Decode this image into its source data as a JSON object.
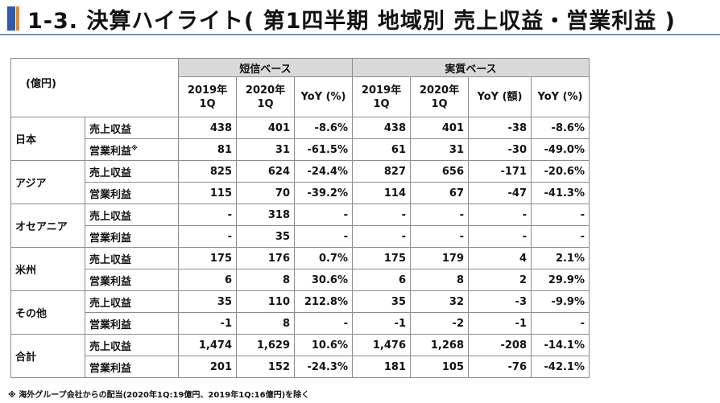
{
  "title": "1-3. 決算ハイライト( 第1四半期 地域別 売上収益・営業利益 )",
  "unit_label": "(億円)",
  "groups": {
    "reported": "短信ベース",
    "real": "実質ベース"
  },
  "columns": {
    "y2019_line1": "2019年",
    "y2019_line2": "1Q",
    "y2020_line1": "2020年",
    "y2020_line2": "1Q",
    "yoy_pct": "YoY (%)",
    "yoy_amt": "YoY (額)"
  },
  "metrics": {
    "revenue": "売上収益",
    "op_income": "営業利益",
    "asterisk": "※"
  },
  "rows": [
    {
      "region": "日本",
      "revenue": [
        "438",
        "401",
        "-8.6%",
        "438",
        "401",
        "-38",
        "-8.6%"
      ],
      "op": [
        "81",
        "31",
        "-61.5%",
        "61",
        "31",
        "-30",
        "-49.0%"
      ]
    },
    {
      "region": "アジア",
      "revenue": [
        "825",
        "624",
        "-24.4%",
        "827",
        "656",
        "-171",
        "-20.6%"
      ],
      "op": [
        "115",
        "70",
        "-39.2%",
        "114",
        "67",
        "-47",
        "-41.3%"
      ]
    },
    {
      "region": "オセアニア",
      "revenue": [
        "-",
        "318",
        "-",
        "-",
        "-",
        "-",
        "-"
      ],
      "op": [
        "-",
        "35",
        "-",
        "-",
        "-",
        "-",
        "-"
      ]
    },
    {
      "region": "米州",
      "revenue": [
        "175",
        "176",
        "0.7%",
        "175",
        "179",
        "4",
        "2.1%"
      ],
      "op": [
        "6",
        "8",
        "30.6%",
        "6",
        "8",
        "2",
        "29.9%"
      ]
    },
    {
      "region": "その他",
      "revenue": [
        "35",
        "110",
        "212.8%",
        "35",
        "32",
        "-3",
        "-9.9%"
      ],
      "op": [
        "-1",
        "8",
        "-",
        "-1",
        "-2",
        "-1",
        "-"
      ]
    },
    {
      "region": "合計",
      "revenue": [
        "1,474",
        "1,629",
        "10.6%",
        "1,476",
        "1,268",
        "-208",
        "-14.1%"
      ],
      "op": [
        "201",
        "152",
        "-24.3%",
        "181",
        "105",
        "-76",
        "-42.1%"
      ]
    }
  ],
  "footnote": "※ 海外グループ会社からの配当(2020年1Q:19億円、2019年1Q:16億円)を除く"
}
